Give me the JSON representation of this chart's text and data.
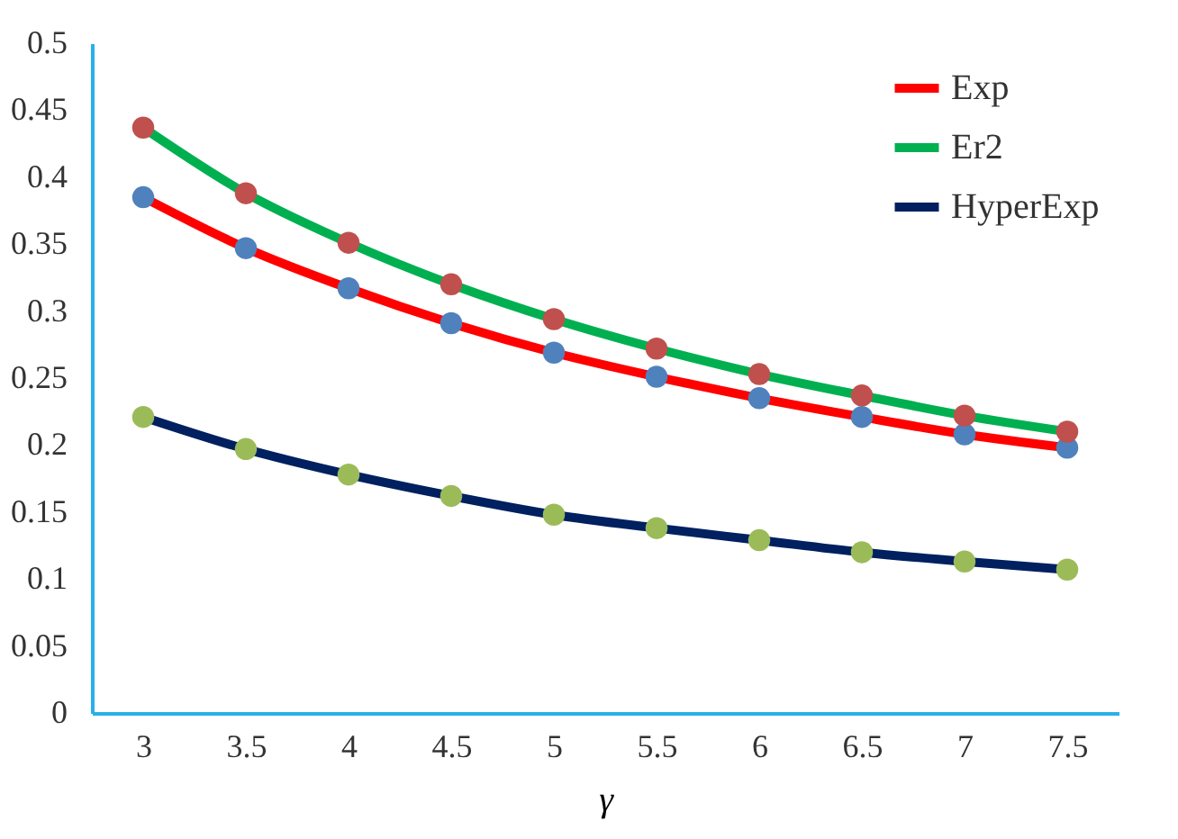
{
  "chart_data": {
    "type": "line",
    "xlabel": "γ",
    "categories": [
      "3",
      "3.5",
      "4",
      "4.5",
      "5",
      "5.5",
      "6",
      "6.5",
      "7",
      "7.5"
    ],
    "ylim": [
      0,
      0.5
    ],
    "yticks": [
      0,
      0.05,
      0.1,
      0.15,
      0.2,
      0.25,
      0.3,
      0.35,
      0.4,
      0.45,
      0.5
    ],
    "grid": false,
    "legend": "top right",
    "marker": "circle",
    "series": [
      {
        "name": "Exp",
        "color": "#ff0000",
        "colors": [
          "#4f81bd",
          "#4f81bd",
          "#4f81bd",
          "#4f81bd",
          "#4f81bd",
          "#4f81bd",
          "#4f81bd",
          "#4f81bd",
          "#4f81bd",
          "#4f81bd"
        ],
        "values": [
          0.385,
          0.347,
          0.317,
          0.291,
          0.269,
          0.251,
          0.235,
          0.221,
          0.208,
          0.198
        ]
      },
      {
        "name": "Er2",
        "color": "#00b050",
        "colors": [
          "#c0504d",
          "#c0504d",
          "#c0504d",
          "#c0504d",
          "#c0504d",
          "#c0504d",
          "#c0504d",
          "#c0504d",
          "#c0504d",
          "#c0504d"
        ],
        "values": [
          0.437,
          0.388,
          0.351,
          0.32,
          0.294,
          0.272,
          0.253,
          0.237,
          0.222,
          0.21
        ]
      },
      {
        "name": "HyperExp",
        "color": "#002060",
        "colors": [
          "#9bbb59",
          "#9bbb59",
          "#9bbb59",
          "#9bbb59",
          "#9bbb59",
          "#9bbb59",
          "#9bbb59",
          "#9bbb59",
          "#9bbb59",
          "#9bbb59"
        ],
        "values": [
          0.221,
          0.197,
          0.178,
          0.162,
          0.148,
          0.138,
          0.129,
          0.12,
          0.113,
          0.107
        ]
      }
    ]
  }
}
